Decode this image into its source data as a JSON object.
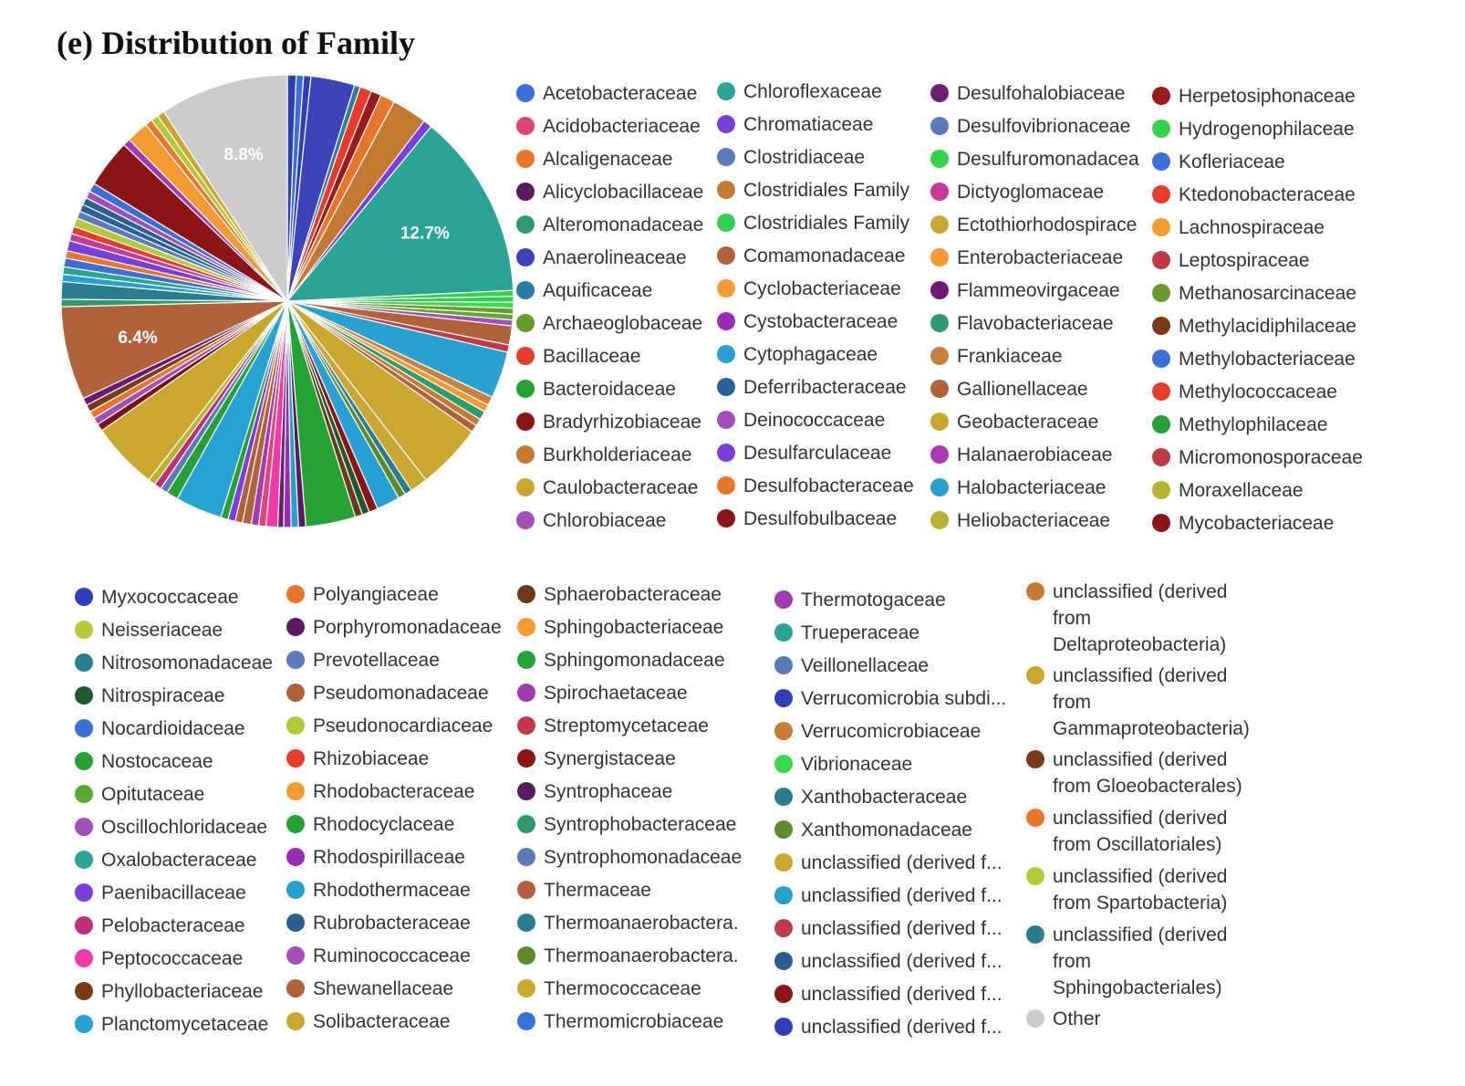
{
  "title": "(e) Distribution of Family",
  "chart_data": {
    "type": "pie",
    "title": "(e) Distribution of Family",
    "legend_placement": "right-and-bottom",
    "data_labels": [
      {
        "category": "Chloroflexaceae",
        "text": "12.7%"
      },
      {
        "category": "Comamonadaceae",
        "text": "6.4%"
      },
      {
        "category": "Other",
        "text": "8.8%"
      }
    ],
    "slices": [
      {
        "category": "Mycobacteriaceae",
        "value": 0.6,
        "color": "#2e3fb0"
      },
      {
        "category": "Kofleriaceae",
        "value": 0.5,
        "color": "#3b6fd8"
      },
      {
        "category": "Myxococcaceae",
        "value": 0.5,
        "color": "#2f3fb8"
      },
      {
        "category": "Anaerolineaceae",
        "value": 3.0,
        "color": "#3d43b8"
      },
      {
        "category": "Aquificaceae",
        "value": 0.4,
        "color": "#2a7da0"
      },
      {
        "category": "Ktedonobacteraceae",
        "value": 0.8,
        "color": "#e63b2a"
      },
      {
        "category": "Herpetosiphonaceae",
        "value": 0.7,
        "color": "#9b1a1a"
      },
      {
        "category": "Alcaligenaceae",
        "value": 1.0,
        "color": "#e8762a"
      },
      {
        "category": "Burkholderiaceae",
        "value": 2.4,
        "color": "#c27a33"
      },
      {
        "category": "Chromatiaceae",
        "value": 0.6,
        "color": "#7a3fd8"
      },
      {
        "category": "Chloroflexaceae",
        "value": 12.7,
        "color": "#2aa595"
      },
      {
        "category": "Hydrogenophilaceae",
        "value": 0.4,
        "color": "#37d24c"
      },
      {
        "category": "Clostridiales Family",
        "value": 0.4,
        "color": "#33cc55"
      },
      {
        "category": "Vibrionaceae",
        "value": 0.4,
        "color": "#3bd84e"
      },
      {
        "category": "Methanosarcinaceae",
        "value": 0.4,
        "color": "#6a9a2e"
      },
      {
        "category": "Opitutaceae",
        "value": 0.4,
        "color": "#5da831"
      },
      {
        "category": "Deinococcaceae",
        "value": 0.4,
        "color": "#a050b8"
      },
      {
        "category": "Gallionellaceae",
        "value": 1.3,
        "color": "#b0623a"
      },
      {
        "category": "Micromonosporaceae",
        "value": 0.5,
        "color": "#c0394a"
      },
      {
        "category": "Cytophagaceae",
        "value": 3.2,
        "color": "#28a1d0"
      },
      {
        "category": "Frankiaceae",
        "value": 0.6,
        "color": "#c88040"
      },
      {
        "category": "Lachnospiraceae",
        "value": 0.5,
        "color": "#f59a32"
      },
      {
        "category": "Alteromonadaceae",
        "value": 0.6,
        "color": "#2e9c6a"
      },
      {
        "category": "Verrucomicrobiaceae",
        "value": 0.5,
        "color": "#c77a33"
      },
      {
        "category": "Shewanellaceae",
        "value": 0.5,
        "color": "#b0603a"
      },
      {
        "category": "Geobacteraceae",
        "value": 4.5,
        "color": "#c9a72e"
      },
      {
        "category": "Ectothiorhodospiraceae",
        "value": 1.2,
        "color": "#c8a632"
      },
      {
        "category": "Thermoanaerobacteraceae",
        "value": 0.5,
        "color": "#2a7d8f"
      },
      {
        "category": "Xanthomonadaceae",
        "value": 0.5,
        "color": "#5f8a2a"
      },
      {
        "category": "Planctomycetaceae",
        "value": 1.6,
        "color": "#27a0d4"
      },
      {
        "category": "Desulfobulbaceae",
        "value": 0.6,
        "color": "#8b1414"
      },
      {
        "category": "Nitrospiraceae",
        "value": 0.5,
        "color": "#1e5a2e"
      },
      {
        "category": "Sphaerobacteraceae",
        "value": 0.5,
        "color": "#6a3a1a"
      },
      {
        "category": "Nostocaceae",
        "value": 3.4,
        "color": "#25a234"
      },
      {
        "category": "Syntrophaceae",
        "value": 0.5,
        "color": "#5a1a60"
      },
      {
        "category": "Rhodothermaceae",
        "value": 0.5,
        "color": "#27a0cc"
      },
      {
        "category": "Cystobacteraceae",
        "value": 0.5,
        "color": "#9a2cb8"
      },
      {
        "category": "Desulfohalobiaceae",
        "value": 0.4,
        "color": "#6a2070"
      },
      {
        "category": "Peptococcaceae",
        "value": 0.8,
        "color": "#f03aa8"
      },
      {
        "category": "Acidobacteriaceae",
        "value": 0.5,
        "color": "#e0457a"
      },
      {
        "category": "Halanaerobiaceae",
        "value": 0.5,
        "color": "#a73ab0"
      },
      {
        "category": "Comamonadaceae-2",
        "value": 0.6,
        "color": "#b0623a"
      },
      {
        "category": "Thermaceae",
        "value": 0.5,
        "color": "#b06040"
      },
      {
        "category": "Desulfarculaceae",
        "value": 0.5,
        "color": "#7a3fd8"
      },
      {
        "category": "Rhodocyclaceae",
        "value": 0.5,
        "color": "#25a034"
      },
      {
        "category": "Nocardioidaceae",
        "value": 3.2,
        "color": "#27a3d2"
      },
      {
        "category": "Methylophilaceae",
        "value": 0.8,
        "color": "#25a038"
      },
      {
        "category": "Clostridiaceae",
        "value": 0.5,
        "color": "#5b7bb8"
      },
      {
        "category": "Pelobacteraceae",
        "value": 0.5,
        "color": "#c0307a"
      },
      {
        "category": "Heliobacteriaceae",
        "value": 0.5,
        "color": "#b8b22e"
      },
      {
        "category": "Caulobacteraceae",
        "value": 4.6,
        "color": "#c9a72e"
      },
      {
        "category": "Bradyrhizobiaceae",
        "value": 0.5,
        "color": "#7a1414"
      },
      {
        "category": "Chlorobiaceae",
        "value": 0.5,
        "color": "#a050b8"
      },
      {
        "category": "Desulfobacteraceae",
        "value": 0.5,
        "color": "#e8762a"
      },
      {
        "category": "Phyllobacteriaceae",
        "value": 0.5,
        "color": "#7a3a1a"
      },
      {
        "category": "Flammeovirgaceae",
        "value": 0.5,
        "color": "#6a1a70"
      },
      {
        "category": "Comamonadaceae",
        "value": 6.4,
        "color": "#b0623a"
      },
      {
        "category": "Flavobacteriaceae",
        "value": 0.5,
        "color": "#2e9a6e"
      },
      {
        "category": "Nitrosomonadaceae",
        "value": 1.2,
        "color": "#2a7d8f"
      },
      {
        "category": "Halobacteriaceae",
        "value": 0.5,
        "color": "#27a0cc"
      },
      {
        "category": "Oxalobacteraceae",
        "value": 0.5,
        "color": "#2aa595"
      },
      {
        "category": "Acetobacteraceae",
        "value": 0.6,
        "color": "#3b6fd8"
      },
      {
        "category": "Polyangiaceae",
        "value": 0.5,
        "color": "#e8762a"
      },
      {
        "category": "Paenibacillaceae",
        "value": 0.7,
        "color": "#7a3fd8"
      },
      {
        "category": "Dictyoglomaceae",
        "value": 0.5,
        "color": "#c83a9a"
      },
      {
        "category": "Rhizobiaceae",
        "value": 0.5,
        "color": "#e63b2a"
      },
      {
        "category": "Neisseriaceae",
        "value": 0.6,
        "color": "#b5c83a"
      },
      {
        "category": "Syntrophomonadaceae",
        "value": 0.5,
        "color": "#5b7bb8"
      },
      {
        "category": "Deferribacteraceae",
        "value": 0.5,
        "color": "#2a5fa0"
      },
      {
        "category": "Rubrobacteraceae",
        "value": 0.5,
        "color": "#2a5f90"
      },
      {
        "category": "Oscillochloridaceae",
        "value": 0.5,
        "color": "#a050b8"
      },
      {
        "category": "Methylobacteriaceae",
        "value": 0.6,
        "color": "#3b6fd8"
      },
      {
        "category": "Bradyrhizobiaceae-2",
        "value": 3.3,
        "color": "#8b1414"
      },
      {
        "category": "Thermotogaceae",
        "value": 0.5,
        "color": "#a03ab0"
      },
      {
        "category": "Lachnospiraceae-2",
        "value": 1.5,
        "color": "#f59a32"
      },
      {
        "category": "Alcaligenaceae-2",
        "value": 0.5,
        "color": "#e8762a"
      },
      {
        "category": "Pseudonocardiaceae",
        "value": 0.5,
        "color": "#b5c83a"
      },
      {
        "category": "Thermococcaceae",
        "value": 0.5,
        "color": "#c9a72e"
      },
      {
        "category": "Other",
        "value": 8.8,
        "color": "#cbcbcb"
      }
    ],
    "legend": [
      {
        "label": "Acetobacteraceae",
        "color": "#3b6fd8"
      },
      {
        "label": "Acidobacteriaceae",
        "color": "#e0457a"
      },
      {
        "label": "Alcaligenaceae",
        "color": "#e8762a"
      },
      {
        "label": "Alicyclobacillaceae",
        "color": "#5a1a5e"
      },
      {
        "label": "Alteromonadaceae",
        "color": "#2e9c6a"
      },
      {
        "label": "Anaerolineaceae",
        "color": "#3d43b8"
      },
      {
        "label": "Aquificaceae",
        "color": "#2a7da0"
      },
      {
        "label": "Archaeoglobaceae",
        "color": "#6a9a2e"
      },
      {
        "label": "Bacillaceae",
        "color": "#e63b2a"
      },
      {
        "label": "Bacteroidaceae",
        "color": "#25a234"
      },
      {
        "label": "Bradyrhizobiaceae",
        "color": "#8b1414"
      },
      {
        "label": "Burkholderiaceae",
        "color": "#c27a33"
      },
      {
        "label": "Caulobacteraceae",
        "color": "#c9a72e"
      },
      {
        "label": "Chlorobiaceae",
        "color": "#a050b8"
      },
      {
        "label": "Chloroflexaceae",
        "color": "#2aa595"
      },
      {
        "label": "Chromatiaceae",
        "color": "#7a3fd8"
      },
      {
        "label": "Clostridiaceae",
        "color": "#5b7bb8"
      },
      {
        "label": "Clostridiales Family",
        "color": "#c27a33"
      },
      {
        "label": "Clostridiales Family",
        "color": "#33cc55"
      },
      {
        "label": "Comamonadaceae",
        "color": "#b0623a"
      },
      {
        "label": "Cyclobacteriaceae",
        "color": "#f59a32"
      },
      {
        "label": "Cystobacteraceae",
        "color": "#9a2cb8"
      },
      {
        "label": "Cytophagaceae",
        "color": "#28a1d0"
      },
      {
        "label": "Deferribacteraceae",
        "color": "#2a5fa0"
      },
      {
        "label": "Deinococcaceae",
        "color": "#a050b8"
      },
      {
        "label": "Desulfarculaceae",
        "color": "#7a3fd8"
      },
      {
        "label": "Desulfobacteraceae",
        "color": "#e8762a"
      },
      {
        "label": "Desulfobulbaceae",
        "color": "#8b1414"
      },
      {
        "label": "Desulfohalobiaceae",
        "color": "#6a2070"
      },
      {
        "label": "Desulfovibrionaceae",
        "color": "#5b7bb8"
      },
      {
        "label": "Desulfuromonadacea",
        "color": "#37d24c"
      },
      {
        "label": "Dictyoglomaceae",
        "color": "#c83a9a"
      },
      {
        "label": "Ectothiorhodospirace",
        "color": "#c8a632"
      },
      {
        "label": "Enterobacteriaceae",
        "color": "#f59a32"
      },
      {
        "label": "Flammeovirgaceae",
        "color": "#6a1a70"
      },
      {
        "label": "Flavobacteriaceae",
        "color": "#2e9a6e"
      },
      {
        "label": "Frankiaceae",
        "color": "#c88040"
      },
      {
        "label": "Gallionellaceae",
        "color": "#b0623a"
      },
      {
        "label": "Geobacteraceae",
        "color": "#c9a72e"
      },
      {
        "label": "Halanaerobiaceae",
        "color": "#a73ab0"
      },
      {
        "label": "Halobacteriaceae",
        "color": "#27a0cc"
      },
      {
        "label": "Heliobacteriaceae",
        "color": "#b8b22e"
      },
      {
        "label": "Herpetosiphonaceae",
        "color": "#9b1a1a"
      },
      {
        "label": "Hydrogenophilaceae",
        "color": "#37d24c"
      },
      {
        "label": "Kofleriaceae",
        "color": "#3b6fd8"
      },
      {
        "label": "Ktedonobacteraceae",
        "color": "#e63b2a"
      },
      {
        "label": "Lachnospiraceae",
        "color": "#f59a32"
      },
      {
        "label": "Leptospiraceae",
        "color": "#c0394a"
      },
      {
        "label": "Methanosarcinaceae",
        "color": "#6a9a2e"
      },
      {
        "label": "Methylacidiphilaceae",
        "color": "#7a3a1a"
      },
      {
        "label": "Methylobacteriaceae",
        "color": "#3b6fd8"
      },
      {
        "label": "Methylococcaceae",
        "color": "#e63b2a"
      },
      {
        "label": "Methylophilaceae",
        "color": "#25a038"
      },
      {
        "label": "Micromonosporaceae",
        "color": "#c0394a"
      },
      {
        "label": "Moraxellaceae",
        "color": "#b8b22e"
      },
      {
        "label": "Mycobacteriaceae",
        "color": "#8b1414"
      },
      {
        "label": "Myxococcaceae",
        "color": "#2f3fb8"
      },
      {
        "label": "Neisseriaceae",
        "color": "#b5c83a"
      },
      {
        "label": "Nitrosomonadaceae",
        "color": "#2a7d8f"
      },
      {
        "label": "Nitrospiraceae",
        "color": "#1e5a2e"
      },
      {
        "label": "Nocardioidaceae",
        "color": "#3b6fd8"
      },
      {
        "label": "Nostocaceae",
        "color": "#25a234"
      },
      {
        "label": "Opitutaceae",
        "color": "#5da831"
      },
      {
        "label": "Oscillochloridaceae",
        "color": "#a050b8"
      },
      {
        "label": "Oxalobacteraceae",
        "color": "#2aa595"
      },
      {
        "label": "Paenibacillaceae",
        "color": "#7a3fd8"
      },
      {
        "label": "Pelobacteraceae",
        "color": "#c0307a"
      },
      {
        "label": "Peptococcaceae",
        "color": "#f03aa8"
      },
      {
        "label": "Phyllobacteriaceae",
        "color": "#7a3a1a"
      },
      {
        "label": "Planctomycetaceae",
        "color": "#27a0d4"
      },
      {
        "label": "Polyangiaceae",
        "color": "#e8762a"
      },
      {
        "label": "Porphyromonadaceae",
        "color": "#5a1a60"
      },
      {
        "label": "Prevotellaceae",
        "color": "#5b7bb8"
      },
      {
        "label": "Pseudomonadaceae",
        "color": "#b0623a"
      },
      {
        "label": "Pseudonocardiaceae",
        "color": "#b5c83a"
      },
      {
        "label": "Rhizobiaceae",
        "color": "#e63b2a"
      },
      {
        "label": "Rhodobacteraceae",
        "color": "#f59a32"
      },
      {
        "label": "Rhodocyclaceae",
        "color": "#25a034"
      },
      {
        "label": "Rhodospirillaceae",
        "color": "#9a2cb8"
      },
      {
        "label": "Rhodothermaceae",
        "color": "#27a0cc"
      },
      {
        "label": "Rubrobacteraceae",
        "color": "#2a5f90"
      },
      {
        "label": "Ruminococcaceae",
        "color": "#a050b8"
      },
      {
        "label": "Shewanellaceae",
        "color": "#b0603a"
      },
      {
        "label": "Solibacteraceae",
        "color": "#c9a72e"
      },
      {
        "label": "Sphaerobacteraceae",
        "color": "#6a3a1a"
      },
      {
        "label": "Sphingobacteriaceae",
        "color": "#f59a32"
      },
      {
        "label": "Sphingomonadaceae",
        "color": "#25a234"
      },
      {
        "label": "Spirochaetaceae",
        "color": "#a03ab0"
      },
      {
        "label": "Streptomycetaceae",
        "color": "#c0394a"
      },
      {
        "label": "Synergistaceae",
        "color": "#8b1414"
      },
      {
        "label": "Syntrophaceae",
        "color": "#5a1a60"
      },
      {
        "label": "Syntrophobacteraceae",
        "color": "#2e9a6e"
      },
      {
        "label": "Syntrophomonadaceae",
        "color": "#5b7bb8"
      },
      {
        "label": "Thermaceae",
        "color": "#b06040"
      },
      {
        "label": "Thermoanaerobactera.",
        "color": "#2a7d8f"
      },
      {
        "label": "Thermoanaerobactera.",
        "color": "#5f8a2a"
      },
      {
        "label": "Thermococcaceae",
        "color": "#c9a72e"
      },
      {
        "label": "Thermomicrobiaceae",
        "color": "#3b6fd8"
      },
      {
        "label": "Thermotogaceae",
        "color": "#a03ab0"
      },
      {
        "label": "Trueperaceae",
        "color": "#2aa595"
      },
      {
        "label": "Veillonellaceae",
        "color": "#5b7bb8"
      },
      {
        "label": "Verrucomicrobia subdi...",
        "color": "#2f3fb8"
      },
      {
        "label": "Verrucomicrobiaceae",
        "color": "#c77a33"
      },
      {
        "label": "Vibrionaceae",
        "color": "#3bd84e"
      },
      {
        "label": "Xanthobacteraceae",
        "color": "#2a7d8f"
      },
      {
        "label": "Xanthomonadaceae",
        "color": "#5f8a2a"
      },
      {
        "label": "unclassified (derived f...",
        "color": "#c9a72e"
      },
      {
        "label": "unclassified (derived f...",
        "color": "#27a0cc"
      },
      {
        "label": "unclassified (derived f...",
        "color": "#c0394a"
      },
      {
        "label": "unclassified (derived f...",
        "color": "#2a5f90"
      },
      {
        "label": "unclassified (derived f...",
        "color": "#8b1414"
      },
      {
        "label": "unclassified (derived f...",
        "color": "#2f3fb8"
      },
      {
        "label": "unclassified (derived\nfrom\nDeltaproteobacteria)",
        "color": "#c27a33"
      },
      {
        "label": "unclassified (derived\nfrom\nGammaproteobacteria)",
        "color": "#c9a72e"
      },
      {
        "label": "unclassified (derived\nfrom Gloeobacterales)",
        "color": "#7a3a1a"
      },
      {
        "label": "unclassified (derived\nfrom Oscillatoriales)",
        "color": "#e8762a"
      },
      {
        "label": "unclassified (derived\nfrom Spartobacteria)",
        "color": "#b5c83a"
      },
      {
        "label": "unclassified (derived\nfrom\nSphingobacteriales)",
        "color": "#2a7d8f"
      },
      {
        "label": "Other",
        "color": "#cbcbcb"
      }
    ]
  }
}
